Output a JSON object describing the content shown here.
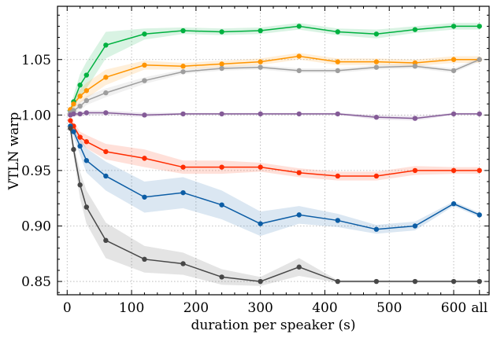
{
  "chart_data": {
    "type": "line",
    "xlabel": "duration per speaker (s)",
    "ylabel": "VTLN warp",
    "xlim": [
      -15,
      655
    ],
    "ylim": [
      0.838,
      1.098
    ],
    "x_ticks": [
      0,
      100,
      200,
      300,
      400,
      500,
      600,
      640
    ],
    "x_tick_labels": [
      "0",
      "100",
      "200",
      "300",
      "400",
      "500",
      "600",
      "all"
    ],
    "y_ticks": [
      0.85,
      0.9,
      0.95,
      1.0,
      1.05
    ],
    "y_tick_labels": [
      "0.85",
      "0.90",
      "0.95",
      "1.00",
      "1.05"
    ],
    "grid": true,
    "x": [
      5,
      10,
      20,
      30,
      60,
      120,
      180,
      240,
      300,
      360,
      420,
      480,
      540,
      600,
      640
    ],
    "series": [
      {
        "color": "#00b140",
        "values": [
          1.004,
          1.012,
          1.027,
          1.036,
          1.063,
          1.073,
          1.076,
          1.075,
          1.076,
          1.08,
          1.075,
          1.073,
          1.077,
          1.08,
          1.08
        ],
        "band": [
          0.003,
          0.006,
          0.01,
          0.012,
          0.012,
          0.005,
          0.003,
          0.003,
          0.003,
          0.003,
          0.003,
          0.004,
          0.003,
          0.003,
          0.003
        ]
      },
      {
        "color": "#ff9500",
        "values": [
          1.005,
          1.01,
          1.017,
          1.022,
          1.034,
          1.045,
          1.044,
          1.046,
          1.048,
          1.053,
          1.048,
          1.048,
          1.047,
          1.05,
          1.05
        ],
        "band": [
          0.003,
          0.005,
          0.006,
          0.007,
          0.007,
          0.004,
          0.003,
          0.003,
          0.003,
          0.003,
          0.003,
          0.003,
          0.003,
          0.003,
          0.003
        ]
      },
      {
        "color": "#9e9e9e",
        "values": [
          1.002,
          1.004,
          1.008,
          1.013,
          1.02,
          1.031,
          1.039,
          1.042,
          1.043,
          1.04,
          1.04,
          1.043,
          1.044,
          1.04,
          1.05
        ],
        "band": [
          0.002,
          0.003,
          0.004,
          0.004,
          0.004,
          0.003,
          0.002,
          0.002,
          0.002,
          0.002,
          0.002,
          0.002,
          0.002,
          0.002,
          0.002
        ]
      },
      {
        "color": "#845b97",
        "values": [
          1.0,
          1.001,
          1.001,
          1.002,
          1.002,
          1.0,
          1.001,
          1.001,
          1.001,
          1.001,
          1.001,
          0.998,
          0.997,
          1.001,
          1.001
        ],
        "band": [
          0.001,
          0.002,
          0.002,
          0.002,
          0.002,
          0.002,
          0.001,
          0.001,
          0.001,
          0.001,
          0.001,
          0.002,
          0.002,
          0.001,
          0.001
        ]
      },
      {
        "color": "#ff2c00",
        "values": [
          0.995,
          0.99,
          0.98,
          0.976,
          0.967,
          0.961,
          0.953,
          0.953,
          0.953,
          0.948,
          0.945,
          0.945,
          0.95,
          0.95,
          0.95
        ],
        "band": [
          0.003,
          0.004,
          0.005,
          0.006,
          0.007,
          0.008,
          0.006,
          0.006,
          0.004,
          0.004,
          0.004,
          0.004,
          0.004,
          0.003,
          0.003
        ]
      },
      {
        "color": "#0c5da5",
        "values": [
          0.99,
          0.985,
          0.972,
          0.959,
          0.945,
          0.926,
          0.93,
          0.919,
          0.902,
          0.91,
          0.905,
          0.897,
          0.9,
          0.92,
          0.91
        ],
        "band": [
          0.003,
          0.005,
          0.008,
          0.011,
          0.013,
          0.014,
          0.014,
          0.013,
          0.011,
          0.008,
          0.006,
          0.004,
          0.004,
          0.002,
          0.002
        ]
      },
      {
        "color": "#474747",
        "values": [
          0.988,
          0.969,
          0.937,
          0.917,
          0.887,
          0.87,
          0.866,
          0.854,
          0.85,
          0.863,
          0.85,
          0.85,
          0.85,
          0.85,
          0.85
        ],
        "band": [
          0.003,
          0.006,
          0.012,
          0.015,
          0.016,
          0.012,
          0.01,
          0.007,
          0.004,
          0.008,
          0.001,
          0.001,
          0.001,
          0.001,
          0.001
        ]
      }
    ]
  }
}
